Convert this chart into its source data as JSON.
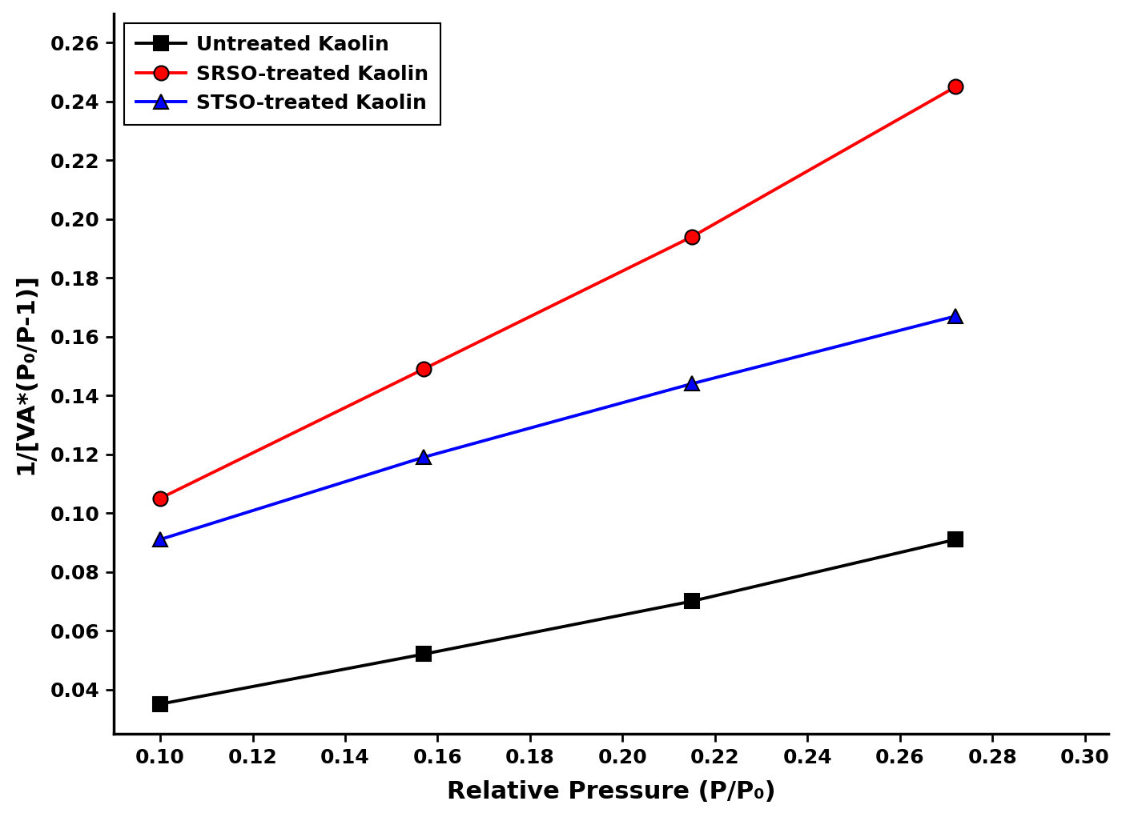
{
  "series": [
    {
      "label": "Untreated Kaolin",
      "color": "#000000",
      "marker": "s",
      "x": [
        0.1,
        0.157,
        0.215,
        0.272
      ],
      "y": [
        0.035,
        0.052,
        0.07,
        0.091
      ]
    },
    {
      "label": "SRSO-treated Kaolin",
      "color": "#ff0000",
      "marker": "o",
      "x": [
        0.1,
        0.157,
        0.215,
        0.272
      ],
      "y": [
        0.105,
        0.149,
        0.194,
        0.245
      ]
    },
    {
      "label": "STSO-treated Kaolin",
      "color": "#0000ff",
      "marker": "^",
      "x": [
        0.1,
        0.157,
        0.215,
        0.272
      ],
      "y": [
        0.091,
        0.119,
        0.144,
        0.167
      ]
    }
  ],
  "xlabel": "Relative Pressure (P/P₀)",
  "ylabel": "1/[VA*(P₀/P-1)]",
  "xlim": [
    0.09,
    0.305
  ],
  "ylim": [
    0.025,
    0.27
  ],
  "xticks": [
    0.1,
    0.12,
    0.14,
    0.16,
    0.18,
    0.2,
    0.22,
    0.24,
    0.26,
    0.28,
    0.3
  ],
  "yticks": [
    0.04,
    0.06,
    0.08,
    0.1,
    0.12,
    0.14,
    0.16,
    0.18,
    0.2,
    0.22,
    0.24,
    0.26
  ],
  "linewidth": 2.8,
  "markersize": 13,
  "markeredgecolor": "#000000",
  "markeredgewidth": 1.5,
  "legend_fontsize": 18,
  "axis_label_fontsize": 22,
  "tick_fontsize": 18,
  "background_color": "#ffffff"
}
